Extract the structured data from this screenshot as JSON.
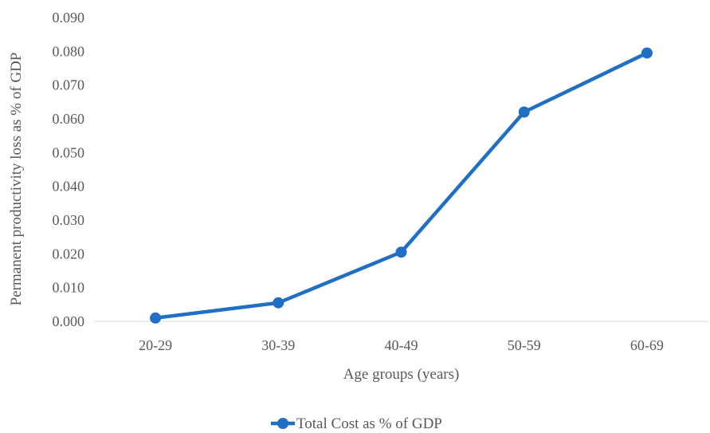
{
  "chart_data": {
    "type": "line",
    "categories": [
      "20-29",
      "30-39",
      "40-49",
      "50-59",
      "60-69"
    ],
    "series": [
      {
        "name": "Total Cost as % of GDP",
        "values": [
          0.001,
          0.0055,
          0.0205,
          0.062,
          0.0795
        ],
        "color": "#1f6fc5"
      }
    ],
    "xlabel": "Age groups (years)",
    "ylabel": "Permanent productivity loss as % of GDP",
    "ylim": [
      0,
      0.09
    ],
    "yticks": [
      "0.000",
      "0.010",
      "0.020",
      "0.030",
      "0.040",
      "0.050",
      "0.060",
      "0.070",
      "0.080",
      "0.090"
    ],
    "grid": false,
    "legend_position": "bottom",
    "axis_color": "#d9d9d9"
  }
}
